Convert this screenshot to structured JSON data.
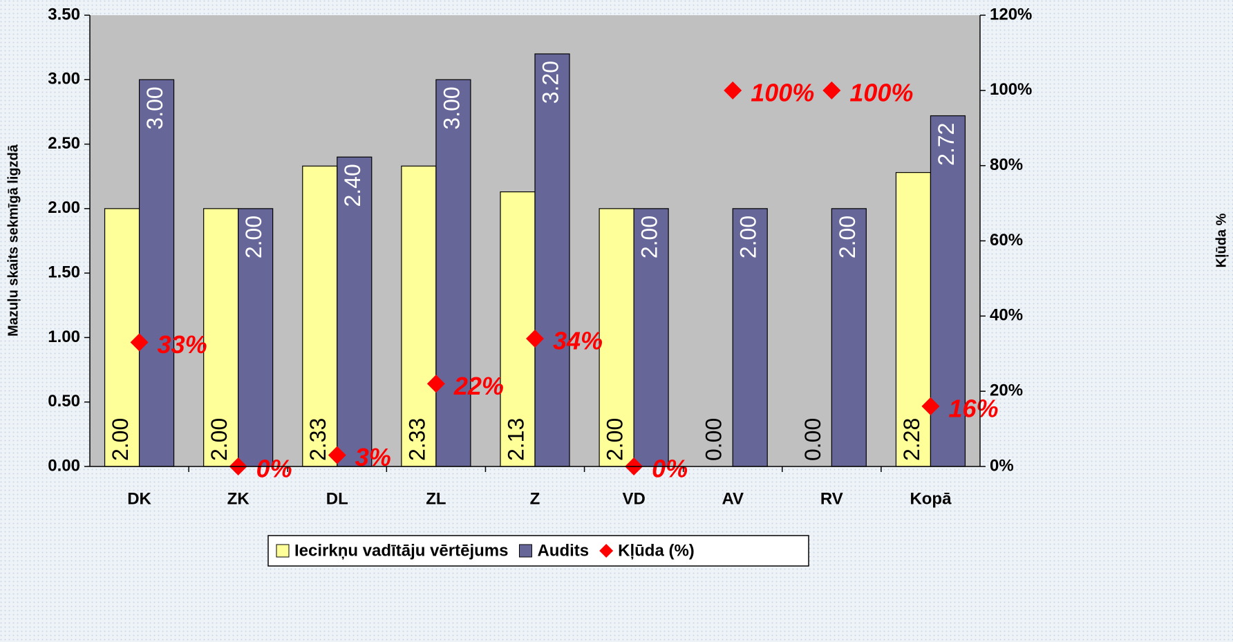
{
  "chart_data": {
    "type": "bar",
    "y_axis_label": "Mazuļu skaits sekmīgā ligzdā",
    "y2_axis_label": "Kļūda %",
    "categories": [
      "DK",
      "ZK",
      "DL",
      "ZL",
      "Z",
      "VD",
      "AV",
      "RV",
      "Kopā"
    ],
    "series": [
      {
        "name": "Iecirkņu vadītāju vērtējums",
        "type": "bar",
        "color": "#ffff99",
        "values": [
          2.0,
          2.0,
          2.33,
          2.33,
          2.13,
          2.0,
          0.0,
          0.0,
          2.28
        ],
        "value_labels": [
          "2.00",
          "2.00",
          "2.33",
          "2.33",
          "2.13",
          "2.00",
          "0.00",
          "0.00",
          "2.28"
        ]
      },
      {
        "name": "Audits",
        "type": "bar",
        "color": "#666699",
        "values": [
          3.0,
          2.0,
          2.4,
          3.0,
          3.2,
          2.0,
          2.0,
          2.0,
          2.72
        ],
        "value_labels": [
          "3.00",
          "2.00",
          "2.40",
          "3.00",
          "3.20",
          "2.00",
          "2.00",
          "2.00",
          "2.72"
        ]
      },
      {
        "name": "Kļūda (%)",
        "type": "scatter",
        "axis": "y2",
        "color": "#ff0000",
        "values": [
          33,
          0,
          3,
          22,
          34,
          0,
          100,
          100,
          16
        ],
        "value_labels": [
          "33%",
          "0%",
          "3%",
          "22%",
          "34%",
          "0%",
          "100%",
          "100%",
          "16%"
        ]
      }
    ],
    "ylim": [
      0,
      3.5
    ],
    "yticks": [
      {
        "value": 0,
        "label": "0.00"
      },
      {
        "value": 0.5,
        "label": "0.50"
      },
      {
        "value": 1,
        "label": "1.00"
      },
      {
        "value": 1.5,
        "label": "1.50"
      },
      {
        "value": 2,
        "label": "2.00"
      },
      {
        "value": 2.5,
        "label": "2.50"
      },
      {
        "value": 3,
        "label": "3.00"
      },
      {
        "value": 3.5,
        "label": "3.50"
      }
    ],
    "y2lim": [
      0,
      120
    ],
    "y2ticks": [
      {
        "value": 0,
        "label": "0%"
      },
      {
        "value": 20,
        "label": "20%"
      },
      {
        "value": 40,
        "label": "40%"
      },
      {
        "value": 60,
        "label": "60%"
      },
      {
        "value": 80,
        "label": "80%"
      },
      {
        "value": 100,
        "label": "100%"
      },
      {
        "value": 120,
        "label": "120%"
      }
    ],
    "legend": "bottom",
    "plot_background": "#c0c0c0"
  }
}
